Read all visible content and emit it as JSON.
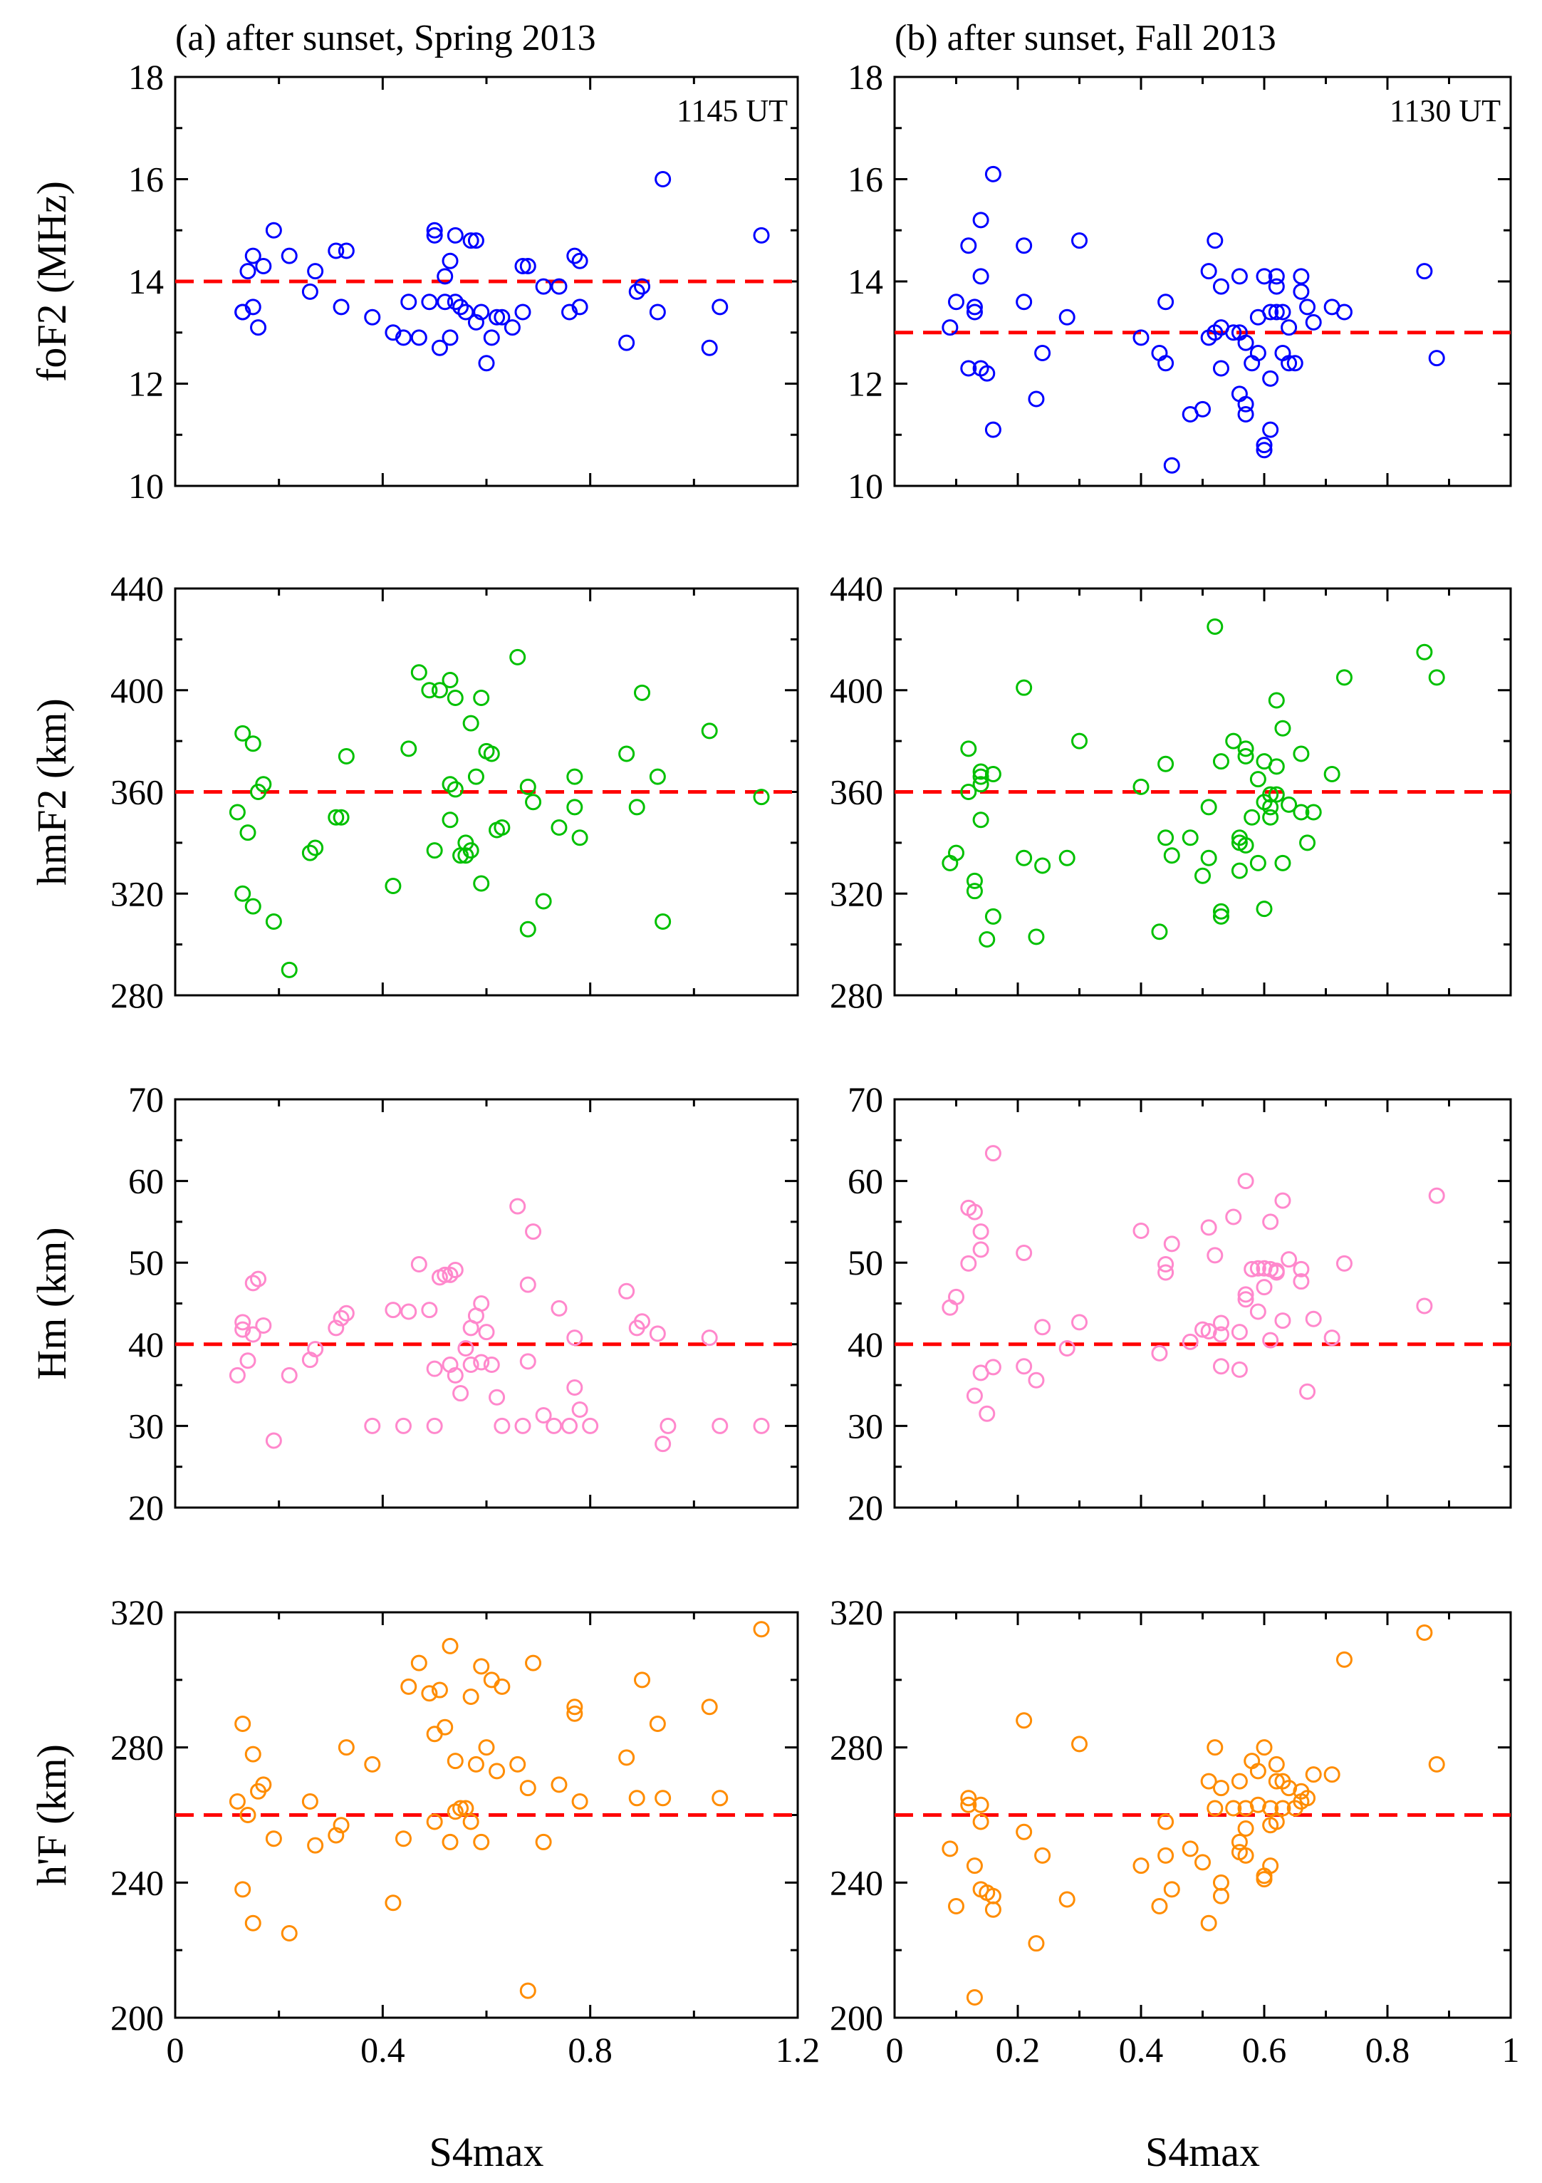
{
  "chart_data": [
    {
      "type": "scatter",
      "panel": "left",
      "row": 0,
      "title": "(a) after sunset, Spring 2013",
      "annotation": "1145 UT",
      "ylabel": "foF2 (MHz)",
      "xlabel": "",
      "xlim": [
        0,
        1.2
      ],
      "ylim": [
        10,
        18
      ],
      "xticks": [
        0,
        0.4,
        0.8,
        1.2
      ],
      "yticks": [
        10,
        12,
        14,
        16,
        18
      ],
      "reference_y": 14,
      "color": "#0000ff",
      "x": [
        0.13,
        0.13,
        0.14,
        0.15,
        0.15,
        0.16,
        0.17,
        0.19,
        0.22,
        0.26,
        0.27,
        0.31,
        0.32,
        0.33,
        0.38,
        0.42,
        0.44,
        0.45,
        0.47,
        0.49,
        0.5,
        0.5,
        0.51,
        0.52,
        0.52,
        0.53,
        0.53,
        0.54,
        0.54,
        0.55,
        0.56,
        0.57,
        0.58,
        0.58,
        0.59,
        0.6,
        0.61,
        0.62,
        0.63,
        0.65,
        0.67,
        0.67,
        0.68,
        0.71,
        0.74,
        0.76,
        0.77,
        0.78,
        0.78,
        0.87,
        0.89,
        0.9,
        0.93,
        0.94,
        1.03,
        1.05,
        1.13
      ],
      "y": [
        13.4,
        13.4,
        14.2,
        13.5,
        14.5,
        13.1,
        14.3,
        15.0,
        14.5,
        13.8,
        14.2,
        14.6,
        13.5,
        14.6,
        13.3,
        13.0,
        12.9,
        13.6,
        12.9,
        13.6,
        15.0,
        14.9,
        12.7,
        13.6,
        14.1,
        12.9,
        14.4,
        14.9,
        13.6,
        13.5,
        13.4,
        14.8,
        13.2,
        14.8,
        13.4,
        12.4,
        12.9,
        13.3,
        13.3,
        13.1,
        14.3,
        13.4,
        14.3,
        13.9,
        13.9,
        13.4,
        14.5,
        13.5,
        14.4,
        12.8,
        13.8,
        13.9,
        13.4,
        16.0,
        12.7,
        13.5,
        14.9
      ]
    },
    {
      "type": "scatter",
      "panel": "right",
      "row": 0,
      "title": "(b) after sunset, Fall 2013",
      "annotation": "1130 UT",
      "ylabel": "",
      "xlabel": "",
      "xlim": [
        0,
        1
      ],
      "ylim": [
        10,
        18
      ],
      "xticks": [
        0,
        0.2,
        0.4,
        0.6,
        0.8,
        1
      ],
      "yticks": [
        10,
        12,
        14,
        16,
        18
      ],
      "reference_y": 13,
      "color": "#0000ff",
      "x": [
        0.09,
        0.1,
        0.12,
        0.12,
        0.13,
        0.13,
        0.14,
        0.14,
        0.14,
        0.15,
        0.16,
        0.16,
        0.21,
        0.21,
        0.23,
        0.24,
        0.28,
        0.3,
        0.4,
        0.43,
        0.44,
        0.44,
        0.45,
        0.48,
        0.5,
        0.51,
        0.51,
        0.52,
        0.52,
        0.53,
        0.53,
        0.53,
        0.55,
        0.56,
        0.56,
        0.56,
        0.57,
        0.57,
        0.57,
        0.58,
        0.59,
        0.59,
        0.6,
        0.6,
        0.6,
        0.61,
        0.61,
        0.61,
        0.62,
        0.62,
        0.62,
        0.63,
        0.63,
        0.64,
        0.64,
        0.65,
        0.66,
        0.66,
        0.67,
        0.68,
        0.71,
        0.73,
        0.86,
        0.88
      ],
      "y": [
        13.1,
        13.6,
        14.7,
        12.3,
        13.5,
        13.4,
        15.2,
        14.1,
        12.3,
        12.2,
        16.1,
        11.1,
        14.7,
        13.6,
        11.7,
        12.6,
        13.3,
        14.8,
        12.9,
        12.6,
        13.6,
        12.4,
        10.4,
        11.4,
        11.5,
        14.2,
        12.9,
        13.0,
        14.8,
        13.9,
        13.1,
        12.3,
        13.0,
        11.8,
        14.1,
        13.0,
        11.6,
        11.4,
        12.8,
        12.4,
        12.6,
        13.3,
        10.8,
        10.7,
        14.1,
        13.4,
        12.1,
        11.1,
        14.1,
        13.9,
        13.4,
        13.4,
        12.6,
        12.4,
        13.1,
        12.4,
        14.1,
        13.8,
        13.5,
        13.2,
        13.5,
        13.4,
        14.2,
        12.5
      ]
    },
    {
      "type": "scatter",
      "panel": "left",
      "row": 1,
      "ylabel": "hmF2 (km)",
      "xlabel": "",
      "xlim": [
        0,
        1.2
      ],
      "ylim": [
        280,
        440
      ],
      "xticks": [
        0,
        0.4,
        0.8,
        1.2
      ],
      "yticks": [
        280,
        320,
        360,
        400,
        440
      ],
      "reference_y": 360,
      "color": "#00c000",
      "x": [
        0.12,
        0.13,
        0.13,
        0.14,
        0.15,
        0.15,
        0.16,
        0.17,
        0.19,
        0.22,
        0.26,
        0.27,
        0.31,
        0.32,
        0.33,
        0.42,
        0.45,
        0.47,
        0.49,
        0.5,
        0.51,
        0.53,
        0.53,
        0.53,
        0.54,
        0.54,
        0.55,
        0.56,
        0.56,
        0.57,
        0.57,
        0.58,
        0.59,
        0.59,
        0.6,
        0.61,
        0.62,
        0.63,
        0.66,
        0.68,
        0.68,
        0.69,
        0.71,
        0.74,
        0.77,
        0.77,
        0.78,
        0.87,
        0.89,
        0.9,
        0.93,
        0.94,
        1.03,
        1.13
      ],
      "y": [
        352,
        383,
        320,
        344,
        379,
        315,
        360,
        363,
        309,
        290,
        336,
        338,
        350,
        350,
        374,
        323,
        377,
        407,
        400,
        337,
        400,
        404,
        363,
        349,
        397,
        361,
        335,
        340,
        335,
        387,
        337,
        366,
        324,
        397,
        376,
        375,
        345,
        346,
        413,
        306,
        362,
        356,
        317,
        346,
        354,
        366,
        342,
        375,
        354,
        399,
        366,
        309,
        384,
        358
      ]
    },
    {
      "type": "scatter",
      "panel": "right",
      "row": 1,
      "ylabel": "",
      "xlabel": "",
      "xlim": [
        0,
        1
      ],
      "ylim": [
        280,
        440
      ],
      "xticks": [
        0,
        0.2,
        0.4,
        0.6,
        0.8,
        1
      ],
      "yticks": [
        280,
        320,
        360,
        400,
        440
      ],
      "reference_y": 360,
      "color": "#00c000",
      "x": [
        0.09,
        0.1,
        0.12,
        0.12,
        0.13,
        0.13,
        0.14,
        0.14,
        0.14,
        0.14,
        0.15,
        0.16,
        0.16,
        0.21,
        0.21,
        0.23,
        0.24,
        0.28,
        0.3,
        0.4,
        0.43,
        0.44,
        0.44,
        0.45,
        0.48,
        0.5,
        0.51,
        0.51,
        0.52,
        0.53,
        0.53,
        0.53,
        0.55,
        0.56,
        0.56,
        0.56,
        0.57,
        0.57,
        0.57,
        0.58,
        0.59,
        0.59,
        0.6,
        0.6,
        0.6,
        0.61,
        0.61,
        0.61,
        0.62,
        0.62,
        0.62,
        0.63,
        0.63,
        0.64,
        0.66,
        0.66,
        0.67,
        0.68,
        0.71,
        0.73,
        0.86,
        0.88
      ],
      "y": [
        332,
        336,
        377,
        360,
        325,
        321,
        366,
        368,
        363,
        349,
        302,
        311,
        367,
        401,
        334,
        303,
        331,
        334,
        380,
        362,
        305,
        371,
        342,
        335,
        342,
        327,
        354,
        334,
        425,
        372,
        313,
        311,
        380,
        342,
        329,
        340,
        374,
        339,
        377,
        350,
        365,
        332,
        372,
        314,
        356,
        354,
        350,
        359,
        359,
        396,
        370,
        332,
        385,
        355,
        375,
        352,
        340,
        352,
        367,
        405,
        415,
        405
      ]
    },
    {
      "type": "scatter",
      "panel": "left",
      "row": 2,
      "ylabel": "Hm (km)",
      "xlabel": "",
      "xlim": [
        0,
        1.2
      ],
      "ylim": [
        20,
        70
      ],
      "xticks": [
        0,
        0.4,
        0.8,
        1.2
      ],
      "yticks": [
        20,
        30,
        40,
        50,
        60,
        70
      ],
      "reference_y": 40,
      "color": "#ff88cc",
      "x": [
        0.12,
        0.13,
        0.13,
        0.14,
        0.15,
        0.15,
        0.16,
        0.17,
        0.19,
        0.22,
        0.26,
        0.27,
        0.31,
        0.32,
        0.33,
        0.38,
        0.42,
        0.44,
        0.45,
        0.47,
        0.49,
        0.5,
        0.5,
        0.51,
        0.52,
        0.53,
        0.53,
        0.54,
        0.54,
        0.55,
        0.56,
        0.57,
        0.57,
        0.58,
        0.59,
        0.59,
        0.6,
        0.61,
        0.62,
        0.63,
        0.66,
        0.67,
        0.68,
        0.68,
        0.69,
        0.71,
        0.73,
        0.74,
        0.76,
        0.77,
        0.77,
        0.78,
        0.8,
        0.87,
        0.89,
        0.9,
        0.93,
        0.94,
        0.95,
        1.03,
        1.05,
        1.13
      ],
      "y": [
        36.2,
        42.7,
        41.8,
        38.0,
        47.5,
        41.2,
        48.0,
        42.3,
        28.2,
        36.2,
        38.1,
        39.4,
        42.0,
        43.2,
        43.8,
        30.0,
        44.2,
        30.0,
        44.0,
        49.8,
        44.2,
        30.0,
        37.0,
        48.2,
        48.5,
        37.5,
        48.5,
        36.2,
        49.1,
        34.0,
        39.5,
        42.0,
        37.5,
        43.5,
        37.8,
        45.0,
        41.5,
        37.5,
        33.5,
        30.0,
        56.9,
        30.0,
        47.3,
        37.9,
        53.8,
        31.3,
        30.0,
        44.4,
        30.0,
        40.8,
        34.7,
        32.0,
        30.0,
        46.5,
        42.0,
        42.8,
        41.3,
        27.8,
        30.0,
        40.8,
        30.0,
        30.0
      ]
    },
    {
      "type": "scatter",
      "panel": "right",
      "row": 2,
      "ylabel": "",
      "xlabel": "",
      "xlim": [
        0,
        1
      ],
      "ylim": [
        20,
        70
      ],
      "xticks": [
        0,
        0.2,
        0.4,
        0.6,
        0.8,
        1
      ],
      "yticks": [
        20,
        30,
        40,
        50,
        60,
        70
      ],
      "reference_y": 40,
      "color": "#ff88cc",
      "x": [
        0.09,
        0.1,
        0.12,
        0.12,
        0.13,
        0.13,
        0.14,
        0.14,
        0.14,
        0.15,
        0.16,
        0.16,
        0.21,
        0.21,
        0.23,
        0.24,
        0.28,
        0.3,
        0.4,
        0.43,
        0.44,
        0.44,
        0.45,
        0.48,
        0.5,
        0.51,
        0.51,
        0.52,
        0.53,
        0.53,
        0.53,
        0.55,
        0.56,
        0.56,
        0.57,
        0.57,
        0.57,
        0.58,
        0.59,
        0.59,
        0.6,
        0.6,
        0.61,
        0.61,
        0.61,
        0.62,
        0.62,
        0.63,
        0.63,
        0.64,
        0.66,
        0.66,
        0.67,
        0.68,
        0.71,
        0.73,
        0.86,
        0.88
      ],
      "y": [
        44.5,
        45.8,
        56.7,
        49.9,
        56.2,
        33.7,
        53.8,
        51.6,
        36.5,
        31.5,
        63.4,
        37.2,
        51.2,
        37.3,
        35.6,
        42.1,
        39.5,
        42.7,
        53.9,
        38.9,
        49.8,
        48.8,
        52.3,
        40.3,
        41.8,
        54.3,
        41.6,
        50.9,
        42.6,
        41.2,
        37.3,
        55.6,
        41.5,
        36.9,
        60.0,
        46.1,
        45.5,
        49.2,
        49.3,
        44.0,
        49.3,
        47.0,
        55.0,
        40.5,
        49.2,
        48.8,
        49.0,
        57.6,
        42.9,
        50.4,
        49.2,
        47.7,
        34.2,
        43.1,
        40.8,
        49.9,
        44.7,
        58.2
      ]
    },
    {
      "type": "scatter",
      "panel": "left",
      "row": 3,
      "ylabel": "h'F (km)",
      "xlabel": "S4max",
      "xlim": [
        0,
        1.2
      ],
      "ylim": [
        200,
        320
      ],
      "xticks": [
        0,
        0.4,
        0.8,
        1.2
      ],
      "yticks": [
        200,
        240,
        280,
        320
      ],
      "reference_y": 260,
      "color": "#ff8c00",
      "x": [
        0.12,
        0.13,
        0.13,
        0.14,
        0.15,
        0.15,
        0.16,
        0.17,
        0.19,
        0.22,
        0.26,
        0.27,
        0.31,
        0.32,
        0.33,
        0.38,
        0.42,
        0.44,
        0.45,
        0.47,
        0.49,
        0.5,
        0.5,
        0.51,
        0.52,
        0.53,
        0.53,
        0.54,
        0.54,
        0.55,
        0.56,
        0.57,
        0.57,
        0.58,
        0.59,
        0.59,
        0.6,
        0.61,
        0.62,
        0.63,
        0.66,
        0.68,
        0.68,
        0.69,
        0.71,
        0.74,
        0.77,
        0.77,
        0.78,
        0.87,
        0.89,
        0.9,
        0.93,
        0.94,
        1.03,
        1.05,
        1.13
      ],
      "y": [
        264,
        287,
        238,
        260,
        278,
        228,
        267,
        269,
        253,
        225,
        264,
        251,
        254,
        257,
        280,
        275,
        234,
        253,
        298,
        305,
        296,
        284,
        258,
        297,
        286,
        310,
        252,
        276,
        261,
        262,
        262,
        295,
        258,
        275,
        304,
        252,
        280,
        300,
        273,
        298,
        275,
        208,
        268,
        305,
        252,
        269,
        290,
        292,
        264,
        277,
        265,
        300,
        287,
        265,
        292,
        265,
        315
      ]
    },
    {
      "type": "scatter",
      "panel": "right",
      "row": 3,
      "ylabel": "",
      "xlabel": "S4max",
      "xlim": [
        0,
        1
      ],
      "ylim": [
        200,
        320
      ],
      "xticks": [
        0,
        0.2,
        0.4,
        0.6,
        0.8,
        1
      ],
      "yticks": [
        200,
        240,
        280,
        320
      ],
      "reference_y": 260,
      "color": "#ff8c00",
      "x": [
        0.09,
        0.1,
        0.12,
        0.12,
        0.13,
        0.13,
        0.14,
        0.14,
        0.14,
        0.15,
        0.16,
        0.16,
        0.21,
        0.21,
        0.23,
        0.24,
        0.28,
        0.3,
        0.4,
        0.43,
        0.44,
        0.44,
        0.45,
        0.48,
        0.5,
        0.51,
        0.51,
        0.52,
        0.52,
        0.53,
        0.53,
        0.53,
        0.55,
        0.56,
        0.56,
        0.56,
        0.57,
        0.57,
        0.57,
        0.58,
        0.59,
        0.59,
        0.6,
        0.6,
        0.6,
        0.61,
        0.61,
        0.61,
        0.62,
        0.62,
        0.62,
        0.63,
        0.63,
        0.64,
        0.65,
        0.66,
        0.66,
        0.67,
        0.68,
        0.71,
        0.73,
        0.86,
        0.88
      ],
      "y": [
        250,
        233,
        265,
        263,
        206,
        245,
        263,
        238,
        258,
        237,
        236,
        232,
        288,
        255,
        222,
        248,
        235,
        281,
        245,
        233,
        258,
        248,
        238,
        250,
        246,
        270,
        228,
        280,
        262,
        240,
        236,
        268,
        262,
        252,
        270,
        249,
        262,
        256,
        248,
        276,
        263,
        273,
        280,
        241,
        242,
        257,
        245,
        262,
        275,
        270,
        258,
        262,
        270,
        268,
        262,
        264,
        267,
        265,
        272,
        272,
        306,
        314,
        275
      ]
    }
  ]
}
